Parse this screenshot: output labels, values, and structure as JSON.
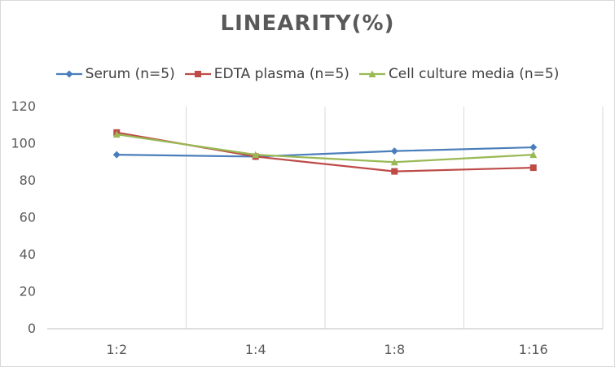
{
  "chart_data": {
    "type": "line",
    "title": "LINEARITY(%)",
    "xlabel": "",
    "ylabel": "",
    "categories": [
      "1:2",
      "1:4",
      "1:8",
      "1:16"
    ],
    "ylim": [
      0,
      120
    ],
    "yticks": [
      0,
      20,
      40,
      60,
      80,
      100,
      120
    ],
    "grid": "vertical",
    "legend_position": "top",
    "series": [
      {
        "name": "Serum (n=5)",
        "values": [
          94,
          93,
          96,
          98
        ],
        "color": "#4a7ebb",
        "marker": "diamond"
      },
      {
        "name": "EDTA plasma (n=5)",
        "values": [
          106,
          93,
          85,
          87
        ],
        "color": "#be4b48",
        "marker": "square"
      },
      {
        "name": "Cell culture media (n=5)",
        "values": [
          105,
          94,
          90,
          94
        ],
        "color": "#98b954",
        "marker": "triangle"
      }
    ]
  }
}
